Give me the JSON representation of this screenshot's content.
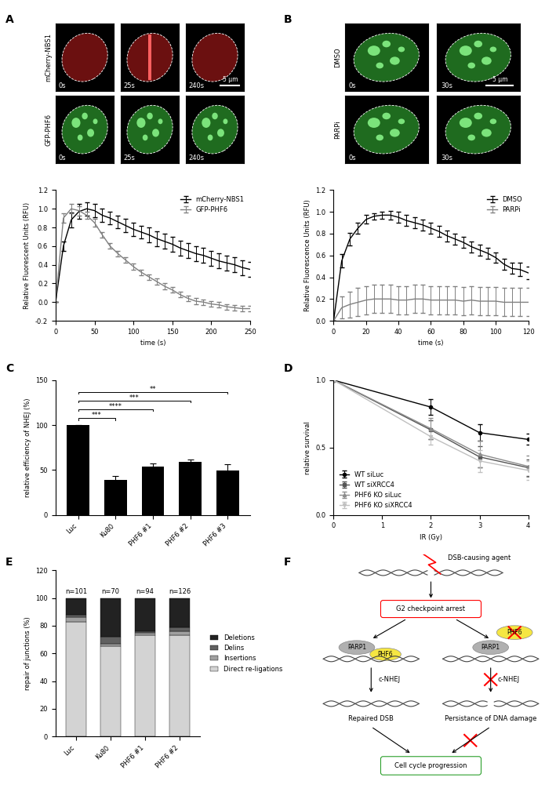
{
  "panel_labels": [
    "A",
    "B",
    "C",
    "D",
    "E",
    "F"
  ],
  "images": {
    "A": {
      "rows": [
        "mCherry-NBS1",
        "GFP-PHF6"
      ],
      "times": [
        "0s",
        "25s",
        "240s"
      ],
      "scale_bar": "5 µm"
    },
    "B": {
      "rows": [
        "DMSO",
        "PARPi"
      ],
      "times": [
        "0s",
        "30s"
      ],
      "scale_bar": "5 µm"
    }
  },
  "chart_data": [
    {
      "type": "line",
      "x": [
        0,
        10,
        20,
        30,
        40,
        50,
        60,
        70,
        80,
        90,
        100,
        110,
        120,
        130,
        140,
        150,
        160,
        170,
        180,
        190,
        200,
        210,
        220,
        230,
        240,
        250
      ],
      "xlim": [
        0,
        250
      ],
      "xticks": [
        0,
        50,
        100,
        150,
        200,
        250
      ],
      "ylim": [
        -0.2,
        1.2
      ],
      "yticks": [
        {
          "value": -0.2,
          "label": "-0.2"
        },
        {
          "value": 0.0,
          "label": "0.0"
        },
        {
          "value": 0.2,
          "label": "0.2"
        },
        {
          "value": 0.4,
          "label": "0.4"
        },
        {
          "value": 0.6,
          "label": "0.6"
        },
        {
          "value": 0.8,
          "label": "0.8"
        },
        {
          "value": 1.0,
          "label": "1.0"
        },
        {
          "value": 1.2,
          "label": "1.2"
        }
      ],
      "x_label": "time (s)",
      "y_label": "Relative Fluorescent Units (RFU)",
      "legend": "upper right",
      "series": [
        {
          "name": "mCherry-NBS1",
          "color": "#000000",
          "values": [
            0,
            0.6,
            0.88,
            0.97,
            1.0,
            0.98,
            0.93,
            0.9,
            0.86,
            0.82,
            0.78,
            0.75,
            0.72,
            0.68,
            0.65,
            0.62,
            0.58,
            0.55,
            0.52,
            0.5,
            0.47,
            0.44,
            0.42,
            0.4,
            0.37,
            0.35
          ],
          "errors": [
            0,
            0.05,
            0.08,
            0.08,
            0.07,
            0.07,
            0.07,
            0.07,
            0.07,
            0.07,
            0.07,
            0.07,
            0.08,
            0.08,
            0.08,
            0.08,
            0.08,
            0.08,
            0.08,
            0.08,
            0.08,
            0.08,
            0.08,
            0.08,
            0.08,
            0.08
          ]
        },
        {
          "name": "GFP-PHF6",
          "color": "#808080",
          "values": [
            0,
            0.9,
            1.0,
            0.98,
            0.93,
            0.85,
            0.72,
            0.6,
            0.52,
            0.45,
            0.38,
            0.32,
            0.27,
            0.22,
            0.17,
            0.13,
            0.08,
            0.04,
            0.01,
            0.0,
            -0.02,
            -0.03,
            -0.05,
            -0.06,
            -0.07,
            -0.07
          ],
          "errors": [
            0,
            0.05,
            0.05,
            0.05,
            0.04,
            0.04,
            0.03,
            0.03,
            0.03,
            0.03,
            0.03,
            0.03,
            0.03,
            0.03,
            0.03,
            0.03,
            0.03,
            0.03,
            0.03,
            0.03,
            0.03,
            0.03,
            0.03,
            0.03,
            0.03,
            0.03
          ]
        }
      ]
    },
    {
      "type": "line",
      "x": [
        0,
        5,
        10,
        15,
        20,
        25,
        30,
        35,
        40,
        45,
        50,
        55,
        60,
        65,
        70,
        75,
        80,
        85,
        90,
        95,
        100,
        105,
        110,
        115,
        120
      ],
      "xlim": [
        0,
        120
      ],
      "xticks": [
        0,
        20,
        40,
        60,
        80,
        100,
        120
      ],
      "ylim": [
        0.0,
        1.2
      ],
      "yticks": [
        {
          "value": 0.0,
          "label": "0.0"
        },
        {
          "value": 0.2,
          "label": "0.2"
        },
        {
          "value": 0.4,
          "label": "0.4"
        },
        {
          "value": 0.6,
          "label": "0.6"
        },
        {
          "value": 0.8,
          "label": "0.8"
        },
        {
          "value": 1.0,
          "label": "1.0"
        },
        {
          "value": 1.2,
          "label": "1.2"
        }
      ],
      "x_label": "time (s)",
      "y_label": "Relative Fluorescence Units (RFU)",
      "legend": "upper right",
      "series": [
        {
          "name": "DMSO",
          "color": "#000000",
          "values": [
            0,
            0.55,
            0.75,
            0.85,
            0.93,
            0.96,
            0.97,
            0.97,
            0.95,
            0.92,
            0.9,
            0.88,
            0.85,
            0.82,
            0.78,
            0.75,
            0.72,
            0.68,
            0.65,
            0.62,
            0.58,
            0.52,
            0.48,
            0.47,
            0.44
          ],
          "errors": [
            0,
            0.06,
            0.06,
            0.05,
            0.04,
            0.03,
            0.03,
            0.04,
            0.05,
            0.05,
            0.05,
            0.05,
            0.05,
            0.05,
            0.05,
            0.05,
            0.05,
            0.05,
            0.05,
            0.05,
            0.05,
            0.05,
            0.05,
            0.06,
            0.06
          ]
        },
        {
          "name": "PARPi",
          "color": "#808080",
          "values": [
            0,
            0.12,
            0.15,
            0.17,
            0.19,
            0.2,
            0.2,
            0.2,
            0.19,
            0.19,
            0.2,
            0.2,
            0.19,
            0.19,
            0.19,
            0.19,
            0.18,
            0.19,
            0.18,
            0.18,
            0.18,
            0.17,
            0.17,
            0.17,
            0.17
          ],
          "errors": [
            0,
            0.1,
            0.12,
            0.13,
            0.13,
            0.13,
            0.13,
            0.13,
            0.13,
            0.13,
            0.13,
            0.13,
            0.13,
            0.13,
            0.13,
            0.13,
            0.13,
            0.13,
            0.13,
            0.13,
            0.13,
            0.13,
            0.13,
            0.13,
            0.13
          ]
        }
      ]
    },
    {
      "type": "bar",
      "categories": [
        "Luc",
        "Ku80",
        "PHF6 #1",
        "PHF6 #2",
        "PHF6 #3"
      ],
      "values": [
        100,
        39,
        54,
        59,
        49
      ],
      "errors": [
        0,
        4,
        3,
        3,
        7
      ],
      "color": "#000000",
      "ylim": [
        0,
        150
      ],
      "yticks": [
        0,
        50,
        100,
        150
      ],
      "y_label": "relative efficiency of NHEJ (%)",
      "annotations": [
        {
          "from": "Luc",
          "to": "Ku80",
          "label": "***"
        },
        {
          "from": "Luc",
          "to": "PHF6 #1",
          "label": "****"
        },
        {
          "from": "Luc",
          "to": "PHF6 #2",
          "label": "***"
        },
        {
          "from": "Luc",
          "to": "PHF6 #3",
          "label": "**"
        }
      ]
    },
    {
      "type": "line",
      "x": [
        0,
        2,
        3,
        4
      ],
      "xlim": [
        0,
        4
      ],
      "xticks": [
        0,
        1,
        2,
        3,
        4
      ],
      "ylim": [
        0.0,
        1.0
      ],
      "yticks": [
        {
          "value": 0.0,
          "label": "0.0"
        },
        {
          "value": 0.5,
          "label": "0.5"
        },
        {
          "value": 1.0,
          "label": "1.0"
        }
      ],
      "x_label": "IR (Gy)",
      "y_label": "relative survival",
      "legend": "lower left",
      "series": [
        {
          "name": "WT siLuc",
          "color": "#000000",
          "marker": "circle",
          "values": [
            1.0,
            0.8,
            0.61,
            0.56
          ],
          "errors": [
            0,
            0.06,
            0.06,
            0.04
          ]
        },
        {
          "name": "WT siXRCC4",
          "color": "#555555",
          "marker": "square",
          "values": [
            1.0,
            0.63,
            0.43,
            0.35
          ],
          "errors": [
            0,
            0.07,
            0.08,
            0.06
          ]
        },
        {
          "name": "PHF6 KO siLuc",
          "color": "#8c8c8c",
          "marker": "triangle",
          "values": [
            1.0,
            0.64,
            0.45,
            0.36
          ],
          "errors": [
            0,
            0.08,
            0.1,
            0.08
          ]
        },
        {
          "name": "PHF6 KO siXRCC4",
          "color": "#c0c0c0",
          "marker": "triangle_down",
          "values": [
            1.0,
            0.58,
            0.4,
            0.33
          ],
          "errors": [
            0,
            0.06,
            0.08,
            0.07
          ]
        }
      ]
    },
    {
      "type": "bar",
      "stacked": true,
      "categories": [
        "Luc",
        "Ku80",
        "PHF6 #1",
        "PHF6 #2"
      ],
      "annotations": [
        "n=101",
        "n=70",
        "n=94",
        "n=126"
      ],
      "ylim": [
        0,
        120
      ],
      "yticks": [
        0,
        20,
        40,
        60,
        80,
        100,
        120
      ],
      "y_label": "repair of junctions (%)",
      "legend": "right",
      "series": [
        {
          "name": "Direct re-ligations",
          "color": "#d3d3d3",
          "values": [
            83,
            65,
            73,
            73
          ]
        },
        {
          "name": "Insertions",
          "color": "#a0a0a0",
          "values": [
            3,
            2,
            2,
            3
          ]
        },
        {
          "name": "Delins",
          "color": "#606060",
          "values": [
            2,
            5,
            1,
            3
          ]
        },
        {
          "name": "Deletions",
          "color": "#222222",
          "values": [
            12,
            28,
            24,
            21
          ]
        }
      ]
    }
  ],
  "diagram": {
    "agent": "DSB-causing agent",
    "checkpoint": "G2 checkpoint arrest",
    "crossed_protein": "PHF6",
    "left": {
      "proteins": [
        "PARP1",
        "PHF6"
      ],
      "step": "c-NHEJ",
      "outcome": "Repaired DSB"
    },
    "right": {
      "proteins": [
        "PARP1"
      ],
      "step": "c-NHEJ",
      "outcome": "Persistance of DNA damage"
    },
    "end": "Cell cycle progression"
  }
}
